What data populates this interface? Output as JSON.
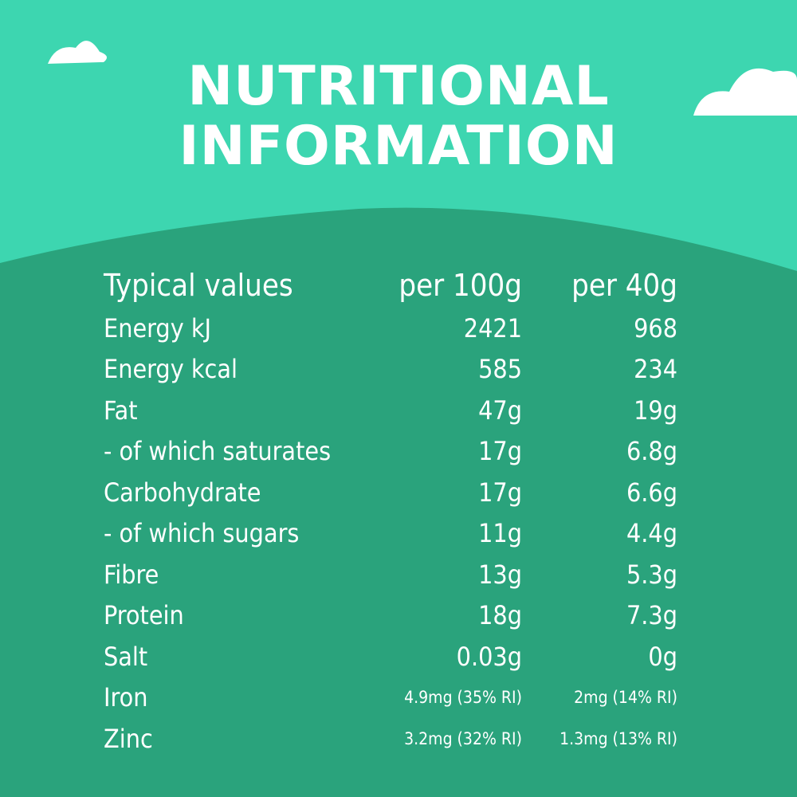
{
  "header": {
    "title_line1": "NUTRITIONAL",
    "title_line2": "INFORMATION"
  },
  "table": {
    "header": [
      "Typical values",
      "per 100g",
      "per 40g"
    ],
    "rows": [
      [
        "Energy kJ",
        "2421",
        "968"
      ],
      [
        "Energy kcal",
        "585",
        "234"
      ],
      [
        "Fat",
        "47g",
        "19g"
      ],
      [
        "- of which saturates",
        "17g",
        "6.8g"
      ],
      [
        "Carbohydrate",
        "17g",
        "6.6g"
      ],
      [
        "- of which sugars",
        "11g",
        "4.4g"
      ],
      [
        "Fibre",
        "13g",
        "5.3g"
      ],
      [
        "Protein",
        "18g",
        "7.3g"
      ],
      [
        "Salt",
        "0.03g",
        "0g"
      ],
      [
        "Iron",
        "4.9mg (35% RI)",
        "2mg (14% RI)"
      ],
      [
        "Zinc",
        "3.2mg (32% RI)",
        "1.3mg (13% RI)"
      ]
    ]
  }
}
